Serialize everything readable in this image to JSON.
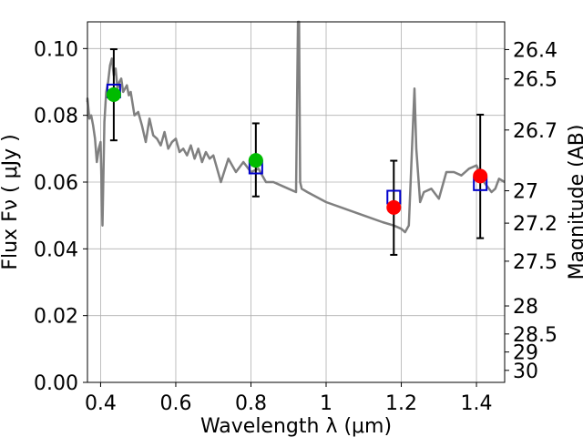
{
  "chart_data": {
    "type": "scatter",
    "title": "",
    "xlabel": "Wavelength  λ (μm)",
    "ylabel": "Flux  Fν  ( μJy )",
    "ylabel_right": "Magnitude (AB)",
    "xlim": [
      0.365,
      1.475
    ],
    "ylim": [
      0.0,
      0.108
    ],
    "grid": true,
    "x_ticks": [
      0.4,
      0.6,
      0.8,
      1.0,
      1.2,
      1.4
    ],
    "x_tick_labels": [
      "0.4",
      "0.6",
      "0.8",
      "1",
      "1.2",
      "1.4"
    ],
    "y_ticks": [
      0.0,
      0.02,
      0.04,
      0.06,
      0.08,
      0.1
    ],
    "y_tick_labels": [
      "0.00",
      "0.02",
      "0.04",
      "0.06",
      "0.08",
      "0.10"
    ],
    "right_ticks": [
      {
        "label": "26.4",
        "flux": 0.0997
      },
      {
        "label": "26.5",
        "flux": 0.0909
      },
      {
        "label": "26.7",
        "flux": 0.0756
      },
      {
        "label": "27",
        "flux": 0.0574
      },
      {
        "label": "27.2",
        "flux": 0.0477
      },
      {
        "label": "27.5",
        "flux": 0.0363
      },
      {
        "label": "28",
        "flux": 0.0229
      },
      {
        "label": "28.5",
        "flux": 0.0145
      },
      {
        "label": "29",
        "flux": 0.0091
      },
      {
        "label": "30",
        "flux": 0.0036
      }
    ],
    "model_spectrum": {
      "color": "#808080",
      "x": [
        0.36,
        0.365,
        0.37,
        0.375,
        0.38,
        0.385,
        0.39,
        0.395,
        0.4,
        0.405,
        0.41,
        0.415,
        0.42,
        0.425,
        0.43,
        0.435,
        0.44,
        0.445,
        0.45,
        0.455,
        0.46,
        0.465,
        0.47,
        0.475,
        0.48,
        0.49,
        0.5,
        0.51,
        0.52,
        0.53,
        0.54,
        0.55,
        0.56,
        0.57,
        0.58,
        0.59,
        0.6,
        0.61,
        0.62,
        0.63,
        0.64,
        0.65,
        0.66,
        0.67,
        0.68,
        0.69,
        0.7,
        0.72,
        0.74,
        0.76,
        0.78,
        0.8,
        0.82,
        0.84,
        0.86,
        0.88,
        0.9,
        0.92,
        0.925,
        0.928,
        0.931,
        0.935,
        0.95,
        1.0,
        1.05,
        1.1,
        1.15,
        1.18,
        1.2,
        1.21,
        1.22,
        1.235,
        1.24,
        1.25,
        1.26,
        1.28,
        1.3,
        1.32,
        1.34,
        1.36,
        1.38,
        1.4,
        1.42,
        1.44,
        1.45,
        1.46,
        1.48
      ],
      "y": [
        0.084,
        0.085,
        0.079,
        0.08,
        0.077,
        0.073,
        0.066,
        0.07,
        0.072,
        0.047,
        0.078,
        0.087,
        0.09,
        0.095,
        0.097,
        0.092,
        0.094,
        0.088,
        0.09,
        0.091,
        0.087,
        0.088,
        0.089,
        0.086,
        0.087,
        0.08,
        0.081,
        0.077,
        0.072,
        0.079,
        0.074,
        0.073,
        0.071,
        0.075,
        0.07,
        0.072,
        0.073,
        0.069,
        0.07,
        0.068,
        0.071,
        0.067,
        0.07,
        0.066,
        0.069,
        0.067,
        0.068,
        0.06,
        0.067,
        0.063,
        0.066,
        0.063,
        0.064,
        0.06,
        0.06,
        0.059,
        0.058,
        0.057,
        0.108,
        0.108,
        0.06,
        0.058,
        0.057,
        0.054,
        0.052,
        0.05,
        0.048,
        0.047,
        0.046,
        0.045,
        0.047,
        0.088,
        0.07,
        0.054,
        0.057,
        0.058,
        0.055,
        0.063,
        0.063,
        0.062,
        0.064,
        0.065,
        0.06,
        0.057,
        0.058,
        0.061,
        0.06
      ]
    },
    "series": [
      {
        "name": "box",
        "marker": "square",
        "color": "#0000cc",
        "x": [
          0.435,
          0.813,
          1.18,
          1.41
        ],
        "values": [
          0.0873,
          0.0645,
          0.0555,
          0.0595
        ]
      },
      {
        "name": "green",
        "marker": "circle",
        "color": "#00bb00",
        "x": [
          0.435,
          0.813
        ],
        "values": [
          0.0862,
          0.0665
        ]
      },
      {
        "name": "red",
        "marker": "circle",
        "color": "#ff0000",
        "x": [
          1.18,
          1.41
        ],
        "values": [
          0.0524,
          0.0618
        ]
      }
    ],
    "error_bars": {
      "color": "#000000",
      "x": [
        0.435,
        0.813,
        1.18,
        1.41
      ],
      "low": [
        0.0725,
        0.0557,
        0.0382,
        0.0432
      ],
      "high": [
        0.0998,
        0.0776,
        0.0664,
        0.0802
      ]
    }
  }
}
